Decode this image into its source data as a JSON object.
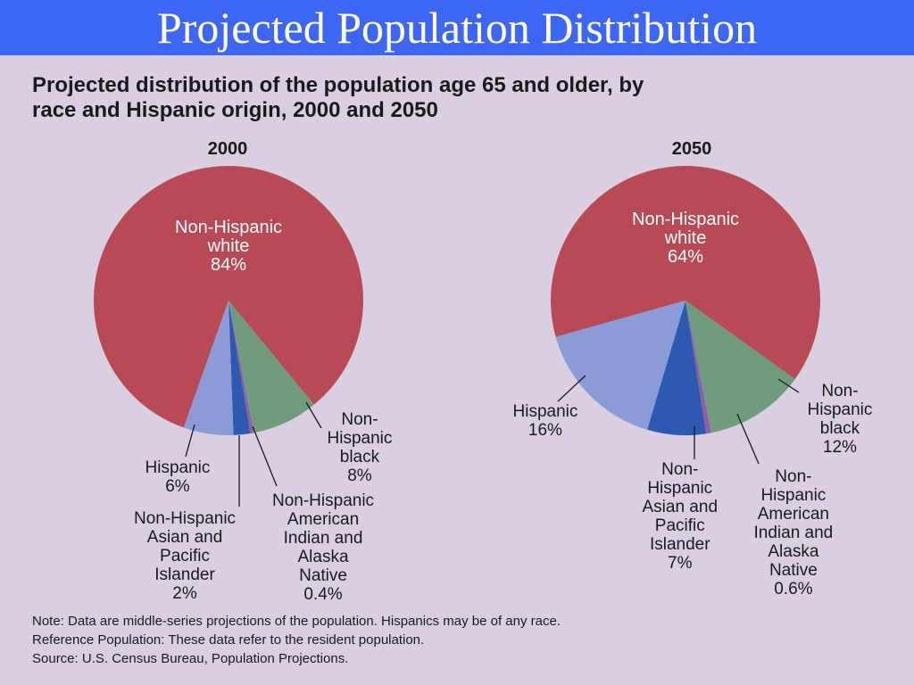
{
  "header": {
    "title": "Projected Population Distribution"
  },
  "subtitle_line1": "Projected distribution of the population age 65 and older, by",
  "subtitle_line2": "race and Hispanic origin, 2000 and 2050",
  "colors": {
    "white": "#b84a55",
    "black": "#6f9b7e",
    "american_indian": "#8e5fa8",
    "asian": "#2d59b0",
    "hispanic": "#8a9bd6"
  },
  "chart_data": [
    {
      "type": "pie",
      "title": "2000",
      "slices": [
        {
          "label_lines": [
            "Non-Hispanic",
            "white",
            "84%"
          ],
          "value": 84,
          "color_key": "white"
        },
        {
          "label_lines": [
            "Non-",
            "Hispanic",
            "black",
            "8%"
          ],
          "value": 8,
          "color_key": "black"
        },
        {
          "label_lines": [
            "Non-Hispanic",
            "American",
            "Indian and",
            "Alaska",
            "Native",
            "0.4%"
          ],
          "value": 0.4,
          "color_key": "american_indian"
        },
        {
          "label_lines": [
            "Non-Hispanic",
            "Asian and",
            "Pacific",
            "Islander",
            "2%"
          ],
          "value": 2,
          "color_key": "asian"
        },
        {
          "label_lines": [
            "Hispanic",
            "6%"
          ],
          "value": 6,
          "color_key": "hispanic"
        }
      ]
    },
    {
      "type": "pie",
      "title": "2050",
      "slices": [
        {
          "label_lines": [
            "Non-Hispanic",
            "white",
            "64%"
          ],
          "value": 64,
          "color_key": "white"
        },
        {
          "label_lines": [
            "Non-",
            "Hispanic",
            "black",
            "12%"
          ],
          "value": 12,
          "color_key": "black"
        },
        {
          "label_lines": [
            "Non-",
            "Hispanic",
            "American",
            "Indian and",
            "Alaska",
            "Native",
            "0.6%"
          ],
          "value": 0.6,
          "color_key": "american_indian"
        },
        {
          "label_lines": [
            "Non-",
            "Hispanic",
            "Asian and",
            "Pacific",
            "Islander",
            "7%"
          ],
          "value": 7,
          "color_key": "asian"
        },
        {
          "label_lines": [
            "Hispanic",
            "16%"
          ],
          "value": 16,
          "color_key": "hispanic"
        }
      ]
    }
  ],
  "notes": [
    "Note: Data are middle-series projections of the population. Hispanics may be of any race.",
    "Reference Population:  These data refer to the resident population.",
    "Source: U.S. Census Bureau, Population Projections."
  ]
}
